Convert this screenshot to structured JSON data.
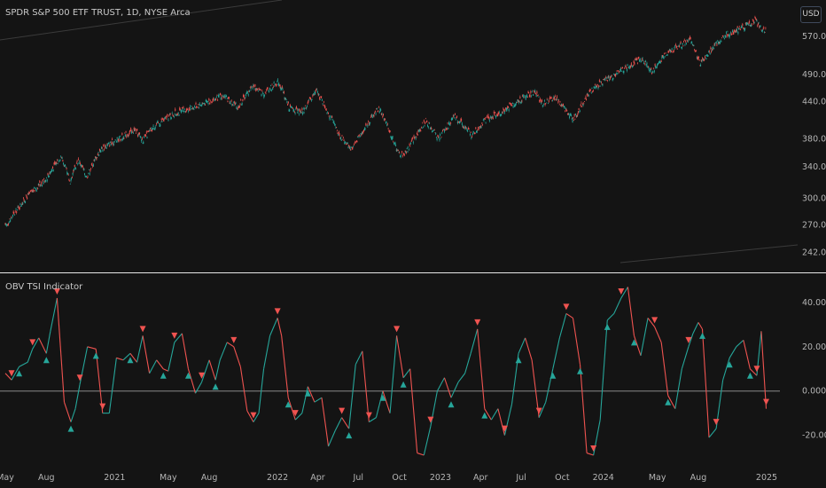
{
  "price_pane": {
    "title": "SPDR S&P 500 ETF TRUST, 1D, NYSE Arca",
    "currency": "USD"
  },
  "indicator_pane": {
    "title": "OBV TSI Indicator"
  },
  "colors": {
    "background": "#141414",
    "up": "#26a69a",
    "down": "#ef5350",
    "zero_line": "#6a6a6a",
    "separator": "#e8e8e8"
  },
  "chart_data": [
    {
      "type": "candlestick",
      "title": "SPDR S&P 500 ETF TRUST, 1D, NYSE Arca",
      "y_scale": "log",
      "y_ticks": [
        "570.00",
        "490.00",
        "440.00",
        "380.00",
        "340.00",
        "300.00",
        "270.00",
        "242.00"
      ],
      "x_ticks": [
        "May",
        "Aug",
        "2021",
        "May",
        "Aug",
        "2022",
        "Apr",
        "Jul",
        "Oct",
        "2023",
        "Apr",
        "Jul",
        "Oct",
        "2024",
        "May",
        "Aug",
        "2025"
      ],
      "series": [
        {
          "x": [
            "2020-05-01",
            "2020-06-15",
            "2020-08-01",
            "2020-09-03",
            "2020-09-23",
            "2020-10-12",
            "2020-10-30",
            "2020-12-01",
            "2021-01-01",
            "2021-02-15",
            "2021-03-05",
            "2021-04-01",
            "2021-05-10",
            "2021-07-01",
            "2021-09-01",
            "2021-10-04",
            "2021-11-05",
            "2021-12-01",
            "2022-01-03",
            "2022-01-27",
            "2022-02-24",
            "2022-03-29",
            "2022-05-20",
            "2022-06-16",
            "2022-08-16",
            "2022-09-30",
            "2022-10-12",
            "2022-11-30",
            "2022-12-28",
            "2023-02-02",
            "2023-03-13",
            "2023-04-15",
            "2023-05-15",
            "2023-06-15",
            "2023-07-31",
            "2023-08-18",
            "2023-09-15",
            "2023-10-27",
            "2023-11-30",
            "2023-12-29",
            "2024-02-15",
            "2024-03-28",
            "2024-04-19",
            "2024-05-20",
            "2024-07-16",
            "2024-08-05",
            "2024-09-06",
            "2024-09-30",
            "2024-11-11",
            "2024-12-06",
            "2024-12-20",
            "2024-12-31"
          ],
          "close": [
            268,
            300,
            325,
            355,
            320,
            350,
            327,
            365,
            376,
            393,
            378,
            400,
            418,
            432,
            450,
            430,
            468,
            455,
            477,
            430,
            420,
            460,
            385,
            365,
            430,
            358,
            357,
            408,
            380,
            415,
            385,
            412,
            420,
            437,
            458,
            436,
            447,
            410,
            455,
            475,
            500,
            522,
            495,
            532,
            563,
            510,
            548,
            572,
            592,
            607,
            588,
            584
          ]
        }
      ]
    },
    {
      "type": "line",
      "title": "OBV TSI Indicator",
      "y_ticks": [
        "40.00",
        "20.00",
        "0.000",
        "-20.00"
      ],
      "ylim": [
        -35,
        50
      ],
      "series": [
        {
          "x": [
            "2020-05-01",
            "2020-05-15",
            "2020-06-01",
            "2020-06-20",
            "2020-07-01",
            "2020-07-15",
            "2020-08-01",
            "2020-08-10",
            "2020-08-25",
            "2020-09-10",
            "2020-09-25",
            "2020-10-05",
            "2020-10-15",
            "2020-11-01",
            "2020-11-20",
            "2020-12-05",
            "2020-12-20",
            "2021-01-05",
            "2021-01-20",
            "2021-02-05",
            "2021-02-20",
            "2021-03-05",
            "2021-03-20",
            "2021-04-05",
            "2021-04-20",
            "2021-05-01",
            "2021-05-15",
            "2021-06-01",
            "2021-06-15",
            "2021-07-01",
            "2021-07-15",
            "2021-08-01",
            "2021-08-15",
            "2021-08-25",
            "2021-09-10",
            "2021-09-25",
            "2021-10-10",
            "2021-10-25",
            "2021-11-08",
            "2021-11-20",
            "2021-12-01",
            "2021-12-15",
            "2022-01-01",
            "2022-01-10",
            "2022-01-25",
            "2022-02-10",
            "2022-02-25",
            "2022-03-10",
            "2022-03-25",
            "2022-04-10",
            "2022-04-25",
            "2022-05-10",
            "2022-05-25",
            "2022-06-10",
            "2022-06-25",
            "2022-07-10",
            "2022-07-25",
            "2022-08-10",
            "2022-08-25",
            "2022-09-10",
            "2022-09-25",
            "2022-10-10",
            "2022-10-25",
            "2022-11-10",
            "2022-11-25",
            "2022-12-10",
            "2022-12-25",
            "2023-01-10",
            "2023-01-25",
            "2023-02-10",
            "2023-02-25",
            "2023-03-10",
            "2023-03-25",
            "2023-04-10",
            "2023-04-25",
            "2023-05-10",
            "2023-05-25",
            "2023-06-10",
            "2023-06-25",
            "2023-07-10",
            "2023-07-25",
            "2023-08-10",
            "2023-08-25",
            "2023-09-10",
            "2023-09-25",
            "2023-10-10",
            "2023-10-25",
            "2023-11-10",
            "2023-11-25",
            "2023-12-10",
            "2023-12-25",
            "2024-01-10",
            "2024-01-25",
            "2024-02-10",
            "2024-02-25",
            "2024-03-10",
            "2024-03-25",
            "2024-04-10",
            "2024-04-25",
            "2024-05-10",
            "2024-05-25",
            "2024-06-10",
            "2024-06-25",
            "2024-07-10",
            "2024-07-20",
            "2024-08-01",
            "2024-08-10",
            "2024-08-25",
            "2024-09-10",
            "2024-09-25",
            "2024-10-10",
            "2024-10-25",
            "2024-11-10",
            "2024-11-25",
            "2024-12-10",
            "2024-12-20",
            "2024-12-31"
          ],
          "y": [
            8,
            5,
            11,
            13,
            19,
            24,
            17,
            27,
            42,
            -5,
            -14,
            -8,
            3,
            20,
            19,
            -10,
            -10,
            15,
            14,
            17,
            13,
            25,
            8,
            14,
            10,
            9,
            22,
            26,
            10,
            -1,
            4,
            14,
            5,
            14,
            22,
            20,
            11,
            -9,
            -14,
            -10,
            10,
            25,
            33,
            25,
            -3,
            -13,
            -10,
            2,
            -5,
            -3,
            -25,
            -18,
            -12,
            -17,
            12,
            18,
            -14,
            -12,
            0,
            -10,
            25,
            6,
            10,
            -28,
            -29,
            -16,
            0,
            6,
            -3,
            4,
            8,
            17,
            28,
            -8,
            -13,
            -8,
            -20,
            -6,
            17,
            24,
            14,
            -12,
            -5,
            10,
            24,
            35,
            33,
            12,
            -28,
            -29,
            -13,
            32,
            35,
            42,
            47,
            25,
            16,
            33,
            29,
            22,
            -2,
            -8,
            10,
            20,
            26,
            31,
            28,
            -21,
            -17,
            5,
            15,
            20,
            23,
            10,
            7,
            27,
            -8
          ]
        }
      ],
      "markers_up": [
        "2020-06-01",
        "2020-08-01",
        "2020-09-25",
        "2020-11-20",
        "2021-02-05",
        "2021-04-20",
        "2021-06-15",
        "2021-08-15",
        "2022-01-25",
        "2022-03-10",
        "2022-06-10",
        "2022-08-25",
        "2022-10-10",
        "2023-01-25",
        "2023-04-10",
        "2023-06-25",
        "2023-09-10",
        "2023-11-10",
        "2024-01-10",
        "2024-03-10",
        "2024-05-25",
        "2024-08-10",
        "2024-10-10",
        "2024-11-25"
      ],
      "markers_down": [
        "2020-05-15",
        "2020-07-01",
        "2020-08-25",
        "2020-10-15",
        "2020-12-05",
        "2021-03-05",
        "2021-05-15",
        "2021-07-15",
        "2021-09-25",
        "2021-11-08",
        "2022-01-01",
        "2022-02-10",
        "2022-05-25",
        "2022-07-25",
        "2022-09-25",
        "2022-12-10",
        "2023-03-25",
        "2023-05-25",
        "2023-08-10",
        "2023-10-10",
        "2023-12-10",
        "2024-02-10",
        "2024-04-25",
        "2024-07-10",
        "2024-09-10",
        "2024-12-10",
        "2024-12-31"
      ]
    }
  ]
}
